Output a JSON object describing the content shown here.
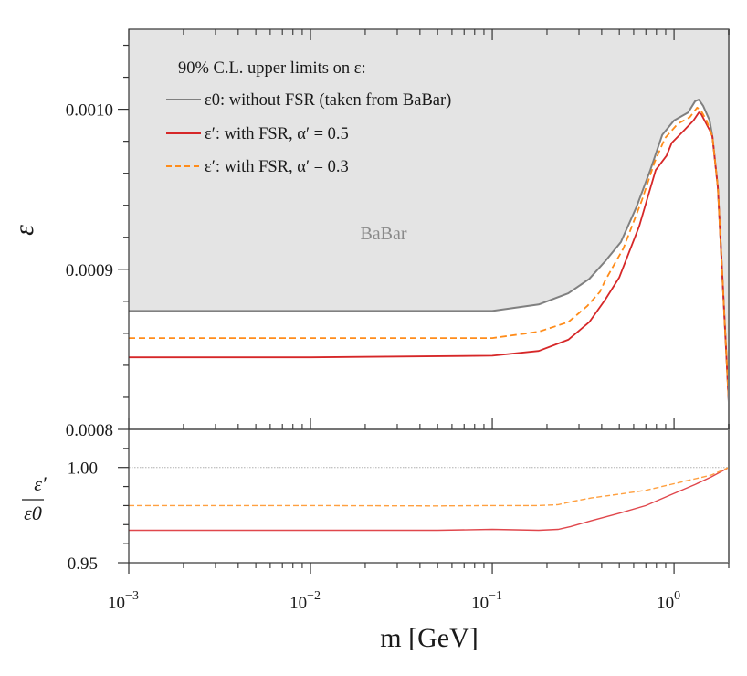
{
  "chart_data": [
    {
      "type": "line",
      "panel": "main",
      "xscale": "log",
      "xlim": [
        0.001,
        2.0
      ],
      "ylim": [
        0.0008,
        0.00105
      ],
      "ylabel": "ε",
      "xlabel": "",
      "yticks": [
        0.0008,
        0.0009,
        0.001
      ],
      "ytick_labels": [
        "0.0008",
        "0.0009",
        "0.0010"
      ],
      "y_minor_step": 2e-05,
      "shaded_region": {
        "label": "BaBar",
        "bounded_below_by": "ε0: without FSR (taken from BaBar)",
        "color": "#e4e4e4"
      },
      "legend": {
        "title": "90% C.L. upper limits on ε:",
        "placement": "top-left",
        "entries": [
          {
            "label": "ε0: without FSR (taken from BaBar)",
            "style": "solid",
            "color": "#808080"
          },
          {
            "label": "ε′: with FSR, α′ = 0.5",
            "style": "solid",
            "color": "#d62728"
          },
          {
            "label": "ε′: with FSR, α′ = 0.3",
            "style": "dashed",
            "color": "#ff8c1a"
          }
        ]
      },
      "series": [
        {
          "name": "ε0: without FSR (taken from BaBar)",
          "color": "#808080",
          "dash": "solid",
          "x": [
            0.001,
            0.01,
            0.1,
            0.18,
            0.262,
            0.342,
            0.418,
            0.51,
            0.622,
            0.74,
            0.861,
            1.0,
            1.196,
            1.307,
            1.369,
            1.449,
            1.571,
            1.626,
            1.742,
            2.0
          ],
          "y": [
            0.000874,
            0.000874,
            0.000874,
            0.000878,
            0.000885,
            0.000894,
            0.000905,
            0.000917,
            0.000939,
            0.000962,
            0.000984,
            0.000993,
            0.000998,
            0.001005,
            0.001006,
            0.001002,
            0.000993,
            0.000983,
            0.000951,
            0.000817
          ]
        },
        {
          "name": "ε′: with FSR, α′ = 0.5",
          "color": "#d62728",
          "dash": "solid",
          "x": [
            0.001,
            0.01,
            0.1,
            0.18,
            0.262,
            0.342,
            0.418,
            0.5,
            0.644,
            0.793,
            0.91,
            0.972,
            1.14,
            1.28,
            1.37,
            1.41,
            1.57,
            1.626,
            1.742,
            2.0
          ],
          "y": [
            0.000845,
            0.000845,
            0.000846,
            0.000849,
            0.000856,
            0.000867,
            0.000881,
            0.000895,
            0.000927,
            0.000962,
            0.000971,
            0.000979,
            0.000987,
            0.000993,
            0.000998,
            0.000997,
            0.000987,
            0.000983,
            0.000951,
            0.000817
          ]
        },
        {
          "name": "ε′: with FSR, α′ = 0.3",
          "color": "#ff8c1a",
          "dash": "dashed",
          "x": [
            0.001,
            0.01,
            0.1,
            0.18,
            0.262,
            0.333,
            0.392,
            0.418,
            0.526,
            0.665,
            0.782,
            0.893,
            1.05,
            1.22,
            1.34,
            1.41,
            1.51,
            1.626,
            1.742,
            2.0
          ],
          "y": [
            0.000857,
            0.000857,
            0.000857,
            0.000861,
            0.000867,
            0.000877,
            0.000886,
            0.000893,
            0.000913,
            0.000943,
            0.000967,
            0.000982,
            0.000991,
            0.000995,
            0.001001,
            0.000999,
            0.000993,
            0.000983,
            0.000951,
            0.000817
          ]
        }
      ]
    },
    {
      "type": "line",
      "panel": "ratio",
      "xscale": "log",
      "xlim": [
        0.001,
        2.0
      ],
      "ylim": [
        0.95,
        1.02
      ],
      "ylabel_num": "ε′",
      "ylabel_den": "ε0",
      "xlabel": "m [GeV]",
      "yticks": [
        0.95,
        1.0
      ],
      "ytick_labels": [
        "0.95",
        "1.00"
      ],
      "y_minor_step": 0.01,
      "xticks": [
        0.001,
        0.01,
        0.1,
        1
      ],
      "xtick_labels": [
        {
          "base": "10",
          "exp": "−3"
        },
        {
          "base": "10",
          "exp": "−2"
        },
        {
          "base": "10",
          "exp": "−1"
        },
        {
          "base": "10",
          "exp": "0"
        }
      ],
      "reference_line": {
        "y": 1.0,
        "color": "#b0b0b0",
        "style": "dotted"
      },
      "series": [
        {
          "name": "ε′/ε0, α′ = 0.5",
          "color": "#e0474c",
          "dash": "solid",
          "x": [
            0.001,
            0.01,
            0.05,
            0.1,
            0.18,
            0.23,
            0.27,
            0.35,
            0.5,
            0.7,
            0.95,
            1.3,
            1.6,
            2.0
          ],
          "y": [
            0.967,
            0.967,
            0.967,
            0.9675,
            0.967,
            0.9675,
            0.969,
            0.972,
            0.976,
            0.98,
            0.9855,
            0.991,
            0.995,
            1.0
          ]
        },
        {
          "name": "ε′/ε0, α′ = 0.3",
          "color": "#ffa040",
          "dash": "dashed",
          "x": [
            0.001,
            0.01,
            0.05,
            0.1,
            0.18,
            0.23,
            0.27,
            0.35,
            0.5,
            0.7,
            0.95,
            1.3,
            1.6,
            2.0
          ],
          "y": [
            0.98,
            0.98,
            0.9798,
            0.98,
            0.98,
            0.9805,
            0.982,
            0.984,
            0.986,
            0.988,
            0.991,
            0.994,
            0.996,
            1.0
          ]
        }
      ]
    }
  ]
}
